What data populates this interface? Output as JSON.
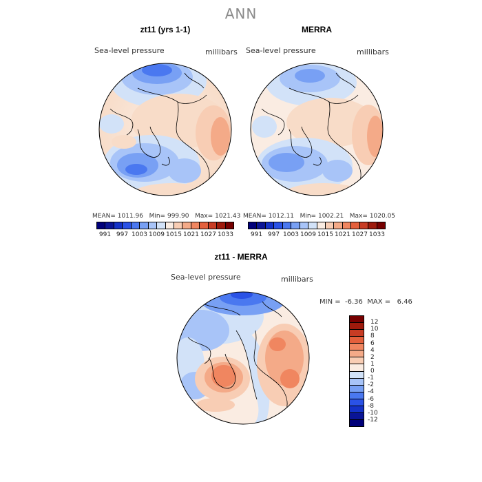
{
  "figure": {
    "title": "ANN"
  },
  "panels": [
    {
      "id": "model",
      "title": "zt11 (yrs 1-1)",
      "variable": "Sea-level pressure",
      "units": "millibars",
      "stats": {
        "mean_label": "MEAN=",
        "mean": "1011.96",
        "min_label": "Min=",
        "min": "999.90",
        "max_label": "Max=",
        "max": "1021.43"
      }
    },
    {
      "id": "obs",
      "title": "MERRA",
      "variable": "Sea-level pressure",
      "units": "millibars",
      "stats": {
        "mean_label": "MEAN=",
        "mean": "1012.11",
        "min_label": "Min=",
        "min": "1002.21",
        "max_label": "Max=",
        "max": "1020.05"
      }
    },
    {
      "id": "diff",
      "title": "zt11 - MERRA",
      "variable": "Sea-level pressure",
      "units": "millibars",
      "stats": {
        "min_label": "MIN =",
        "min": "-6.36",
        "max_label": "MAX =",
        "max": "6.46"
      }
    }
  ],
  "colorbar_abs": {
    "colors": [
      "#00007a",
      "#0a1496",
      "#1432c8",
      "#2a52e6",
      "#4a78f0",
      "#78a0f4",
      "#a8c4f8",
      "#d2e2f8",
      "#faece2",
      "#f8cdb4",
      "#f4aa88",
      "#f08660",
      "#e4603c",
      "#c83c24",
      "#9e1a0c",
      "#760000"
    ],
    "tick_labels": [
      "991",
      "997",
      "1003",
      "1009",
      "1015",
      "1021",
      "1027",
      "1033"
    ]
  },
  "colorbar_diff": {
    "colors": [
      "#00007a",
      "#0a1496",
      "#1432c8",
      "#2a52e6",
      "#4a78f0",
      "#78a0f4",
      "#a8c4f8",
      "#d2e2f8",
      "#faece2",
      "#f8cdb4",
      "#f4aa88",
      "#f08660",
      "#e4603c",
      "#c83c24",
      "#9e1a0c",
      "#760000"
    ],
    "tick_labels": [
      "12",
      "10",
      "8",
      "6",
      "4",
      "2",
      "1",
      "0",
      "-1",
      "-2",
      "-4",
      "-6",
      "-8",
      "-10",
      "-12"
    ]
  }
}
